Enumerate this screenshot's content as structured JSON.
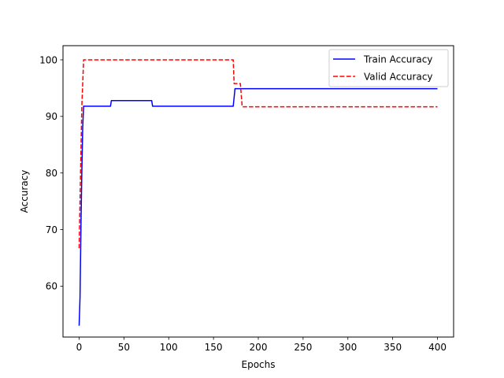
{
  "chart_data": {
    "type": "line",
    "title": "",
    "xlabel": "Epochs",
    "ylabel": "Accuracy",
    "xlim": [
      -18,
      418
    ],
    "ylim": [
      51,
      102.5
    ],
    "xticks": [
      0,
      50,
      100,
      150,
      200,
      250,
      300,
      350,
      400
    ],
    "yticks": [
      60,
      70,
      80,
      90,
      100
    ],
    "grid": false,
    "legend_position": "top-right",
    "series": [
      {
        "name": "Train Accuracy",
        "color": "#0000ff",
        "dash": "solid",
        "points": [
          [
            0,
            53.0
          ],
          [
            1,
            58.0
          ],
          [
            2,
            70.0
          ],
          [
            3,
            80.0
          ],
          [
            4,
            88.0
          ],
          [
            5,
            91.8
          ],
          [
            35,
            91.8
          ],
          [
            36,
            92.8
          ],
          [
            81,
            92.8
          ],
          [
            82,
            91.8
          ],
          [
            172,
            91.8
          ],
          [
            174,
            94.9
          ],
          [
            175,
            94.9
          ],
          [
            400,
            94.9
          ]
        ]
      },
      {
        "name": "Valid Accuracy",
        "color": "#ff0000",
        "dash": "dashed",
        "points": [
          [
            0,
            66.7
          ],
          [
            1,
            75.0
          ],
          [
            2,
            83.3
          ],
          [
            3,
            91.7
          ],
          [
            5,
            100.0
          ],
          [
            172,
            100.0
          ],
          [
            173,
            95.8
          ],
          [
            180,
            95.8
          ],
          [
            182,
            91.7
          ],
          [
            400,
            91.7
          ]
        ]
      }
    ]
  }
}
